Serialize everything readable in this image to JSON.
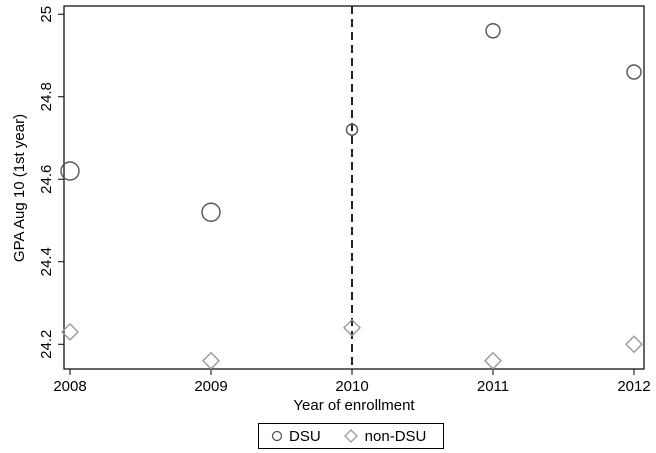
{
  "chart_data": {
    "type": "scatter",
    "title": "",
    "xlabel": "Year of enrollment",
    "ylabel": "GPA Aug 10 (1st year)",
    "x_ticks": [
      "2008",
      "2009",
      "2010",
      "2011",
      "2012"
    ],
    "y_ticks": [
      "24.2",
      "24.4",
      "24.6",
      "24.8",
      "25"
    ],
    "xlim": [
      2008,
      2012
    ],
    "ylim": [
      24.14,
      25.02
    ],
    "grid": false,
    "reference_line": {
      "x": 2010,
      "style": "dashed"
    },
    "legend_position": "bottom",
    "series": [
      {
        "name": "DSU",
        "marker": "circle",
        "color": "#555555",
        "points": [
          {
            "x": 2008,
            "y": 24.62,
            "size": "large"
          },
          {
            "x": 2009,
            "y": 24.52,
            "size": "large"
          },
          {
            "x": 2010,
            "y": 24.72,
            "size": "small"
          },
          {
            "x": 2011,
            "y": 24.96,
            "size": "medium"
          },
          {
            "x": 2012,
            "y": 24.86,
            "size": "medium"
          }
        ]
      },
      {
        "name": "non-DSU",
        "marker": "diamond",
        "color": "#9a9a9a",
        "points": [
          {
            "x": 2008,
            "y": 24.23,
            "size": "medium"
          },
          {
            "x": 2009,
            "y": 24.16,
            "size": "medium"
          },
          {
            "x": 2010,
            "y": 24.24,
            "size": "medium"
          },
          {
            "x": 2011,
            "y": 24.16,
            "size": "medium"
          },
          {
            "x": 2012,
            "y": 24.2,
            "size": "medium"
          }
        ]
      }
    ]
  }
}
